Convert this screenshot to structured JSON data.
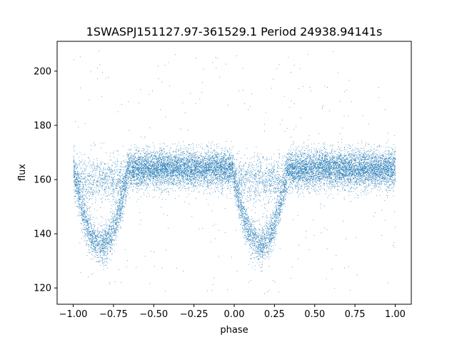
{
  "chart_data": {
    "type": "scatter",
    "title": "1SWASPJ151127.97-361529.1 Period 24938.94141s",
    "xlabel": "phase",
    "ylabel": "flux",
    "xlim": [
      -1.1,
      1.1
    ],
    "ylim": [
      114,
      211
    ],
    "x_ticks": [
      -1.0,
      -0.75,
      -0.5,
      -0.25,
      0.0,
      0.25,
      0.5,
      0.75,
      1.0
    ],
    "x_tick_labels": [
      "−1.00",
      "−0.75",
      "−0.50",
      "−0.25",
      "0.00",
      "0.25",
      "0.50",
      "0.75",
      "1.00"
    ],
    "y_ticks": [
      120,
      140,
      160,
      180,
      200
    ],
    "y_tick_labels": [
      "120",
      "140",
      "160",
      "180",
      "200"
    ],
    "grid": false,
    "marker_color": "#1f77b4",
    "light_curve": {
      "phase_range": [
        -1.0,
        1.0
      ],
      "baseline_flux": 164,
      "scatter": 3.5,
      "eclipse_centers": [
        -0.83,
        0.16
      ],
      "eclipse_min_flux": 136,
      "eclipse_half_width": 0.17,
      "outlier_range": [
        118,
        208
      ]
    }
  }
}
